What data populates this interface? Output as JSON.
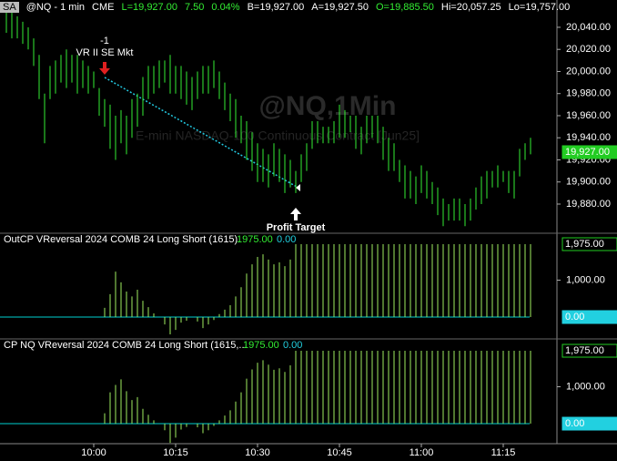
{
  "header": {
    "symbol_box": "SA",
    "symbol": "@NQ - 1 min",
    "exchange": "CME",
    "last": "L=19,927.00",
    "change": "7.50",
    "change_pct": "0.04%",
    "bid": "B=19,927.00",
    "ask": "A=19,927.50",
    "open": "O=19,885.50",
    "high": "Hi=20,057.25",
    "low": "Lo=19,757.00"
  },
  "chart_data": [
    {
      "type": "ohlc",
      "watermark": "@NQ,1Min",
      "watermark_sub": "E-mini NASDAQ-100 Continuous Contract [Jun25]",
      "color": "#33ee33",
      "annotations": {
        "entry_qty": "-1",
        "entry_label": "VR II SE Mkt",
        "exit_label": "Profit Target"
      },
      "high": [
        20060,
        20055,
        20050,
        20045,
        20040,
        20030,
        20015,
        19980,
        20005,
        20010,
        20015,
        20020,
        20015,
        20015,
        20010,
        20005,
        20000,
        19985,
        19975,
        19970,
        19960,
        19965,
        19960,
        19975,
        19980,
        19995,
        20005,
        20005,
        20010,
        20010,
        20015,
        20005,
        20005,
        20000,
        19995,
        20000,
        20005,
        20005,
        20010,
        20000,
        19990,
        19980,
        19975,
        19960,
        19955,
        19945,
        19935,
        19930,
        19925,
        19935,
        19930,
        19925,
        19920,
        19910,
        19925,
        19935,
        19955,
        19955,
        19950,
        19950,
        19955,
        19970,
        19965,
        19960,
        19960,
        19950,
        19960,
        19960,
        19960,
        19950,
        19940,
        19935,
        19920,
        19915,
        19910,
        19905,
        19915,
        19910,
        19900,
        19895,
        19885,
        19880,
        19885,
        19885,
        19880,
        19885,
        19895,
        19905,
        19910,
        19910,
        19915,
        19910,
        19910,
        19910,
        19930,
        19935,
        19940
      ],
      "low": [
        20035,
        20030,
        20030,
        20025,
        20020,
        20005,
        19975,
        19935,
        19975,
        19980,
        19990,
        19985,
        19990,
        19980,
        19985,
        19980,
        19985,
        19960,
        19950,
        19930,
        19920,
        19935,
        19925,
        19940,
        19950,
        19960,
        19975,
        19980,
        19985,
        19990,
        19980,
        19980,
        19975,
        19970,
        19965,
        19975,
        19980,
        19980,
        19985,
        19975,
        19965,
        19955,
        19940,
        19935,
        19920,
        19910,
        19900,
        19900,
        19895,
        19905,
        19900,
        19890,
        19895,
        19890,
        19900,
        19910,
        19930,
        19935,
        19935,
        19935,
        19935,
        19940,
        19940,
        19945,
        19930,
        19925,
        19935,
        19940,
        19935,
        19920,
        19910,
        19910,
        19900,
        19885,
        19885,
        19880,
        19890,
        19885,
        19880,
        19870,
        19860,
        19865,
        19865,
        19865,
        19860,
        19865,
        19875,
        19880,
        19885,
        19895,
        19895,
        19900,
        19890,
        19885,
        19905,
        19920,
        19925
      ],
      "ylim": [
        19853.6,
        20064.7
      ],
      "yticks": [
        {
          "value": 20040,
          "label": "20,040.00"
        },
        {
          "value": 20020,
          "label": "20,020.00"
        },
        {
          "value": 20000,
          "label": "20,000.00"
        },
        {
          "value": 19980,
          "label": "19,980.00"
        },
        {
          "value": 19960,
          "label": "19,960.00"
        },
        {
          "value": 19940,
          "label": "19,940.00"
        },
        {
          "value": 19920,
          "label": "19,920.00"
        },
        {
          "value": 19900,
          "label": "19,900.00"
        },
        {
          "value": 19880,
          "label": "19,880.00"
        }
      ],
      "last_value": {
        "value": 19927,
        "label": "19,927.00"
      }
    },
    {
      "type": "bar",
      "title": "OutCP VReversal 2024 COMB 24 Long Short (1615)",
      "status": [
        "1975.00",
        "0.00"
      ],
      "color": "#a0ee60",
      "zero_color": "#00d0d0",
      "values": [
        0,
        0,
        0,
        0,
        0,
        0,
        0,
        0,
        0,
        0,
        0,
        0,
        0,
        0,
        0,
        0,
        0,
        0,
        250,
        620,
        1230,
        940,
        690,
        560,
        740,
        440,
        270,
        100,
        0,
        -200,
        -470,
        -350,
        -150,
        -100,
        0,
        -120,
        -300,
        -200,
        -80,
        80,
        200,
        320,
        560,
        810,
        1180,
        1430,
        1630,
        1700,
        1560,
        1430,
        1480,
        1380,
        1560,
        1975,
        1975,
        1975,
        1975,
        1975,
        1975,
        1975,
        1975,
        1975,
        1975,
        1975,
        1975,
        1975,
        1975,
        1975,
        1975,
        1975,
        1975,
        1975,
        1975,
        1975,
        1975,
        1975,
        1975,
        1975,
        1975,
        1975,
        1975,
        1975,
        1975,
        1975,
        1975,
        1975,
        1975,
        1975,
        1975,
        1975,
        1975,
        1975,
        1975,
        1975,
        1975,
        1975,
        1975
      ],
      "ylim": [
        -543,
        2222
      ],
      "yticks": [
        {
          "value": 1000,
          "label": "1,000.00"
        }
      ],
      "last_values": [
        {
          "value": 1975,
          "label": "1,975.00"
        },
        {
          "value": 0,
          "label": "0.00"
        }
      ]
    },
    {
      "type": "bar",
      "title": "CP NQ VReversal 2024 COMB 24 Long Short (1615,...",
      "status": [
        "1975.00",
        "0.00"
      ],
      "color": "#a0ee60",
      "zero_color": "#00d0d0",
      "categories": [
        null,
        null,
        null,
        null,
        null,
        null,
        null,
        null,
        null,
        null,
        null,
        null,
        null,
        null,
        null,
        null,
        "10:00",
        null,
        null,
        null,
        null,
        null,
        null,
        null,
        null,
        null,
        null,
        null,
        null,
        null,
        null,
        "10:15",
        null,
        null,
        null,
        null,
        null,
        null,
        null,
        null,
        null,
        null,
        null,
        null,
        null,
        null,
        "10:30",
        null,
        null,
        null,
        null,
        null,
        null,
        null,
        null,
        null,
        null,
        null,
        null,
        null,
        null,
        "10:45",
        null,
        null,
        null,
        null,
        null,
        null,
        null,
        null,
        null,
        null,
        null,
        null,
        null,
        null,
        "11:00",
        null,
        null,
        null,
        null,
        null,
        null,
        null,
        null,
        null,
        null,
        null,
        null,
        null,
        null,
        "11:15",
        null,
        null,
        null,
        null,
        null
      ],
      "values": [
        0,
        0,
        0,
        0,
        0,
        0,
        0,
        0,
        0,
        0,
        0,
        0,
        0,
        0,
        0,
        0,
        0,
        0,
        280,
        850,
        1050,
        1200,
        880,
        640,
        720,
        400,
        240,
        90,
        0,
        -180,
        -520,
        -380,
        -160,
        -90,
        0,
        -100,
        -260,
        -180,
        -60,
        90,
        220,
        360,
        600,
        850,
        1220,
        1470,
        1650,
        1720,
        1600,
        1460,
        1500,
        1400,
        1580,
        1975,
        1975,
        1975,
        1975,
        1975,
        1975,
        1975,
        1975,
        1975,
        1975,
        1975,
        1975,
        1975,
        1975,
        1975,
        1975,
        1975,
        1975,
        1975,
        1975,
        1975,
        1975,
        1975,
        1975,
        1975,
        1975,
        1975,
        1975,
        1975,
        1975,
        1975,
        1975,
        1975,
        1975,
        1975,
        1975,
        1975,
        1975,
        1975,
        1975,
        1975,
        1975,
        1975,
        1975
      ],
      "ylim": [
        -543,
        2247
      ],
      "yticks": [
        {
          "value": 1000,
          "label": "1,000.00"
        }
      ],
      "last_values": [
        {
          "value": 1975,
          "label": "1,975.00"
        },
        {
          "value": 0,
          "label": "0.00"
        }
      ]
    }
  ]
}
